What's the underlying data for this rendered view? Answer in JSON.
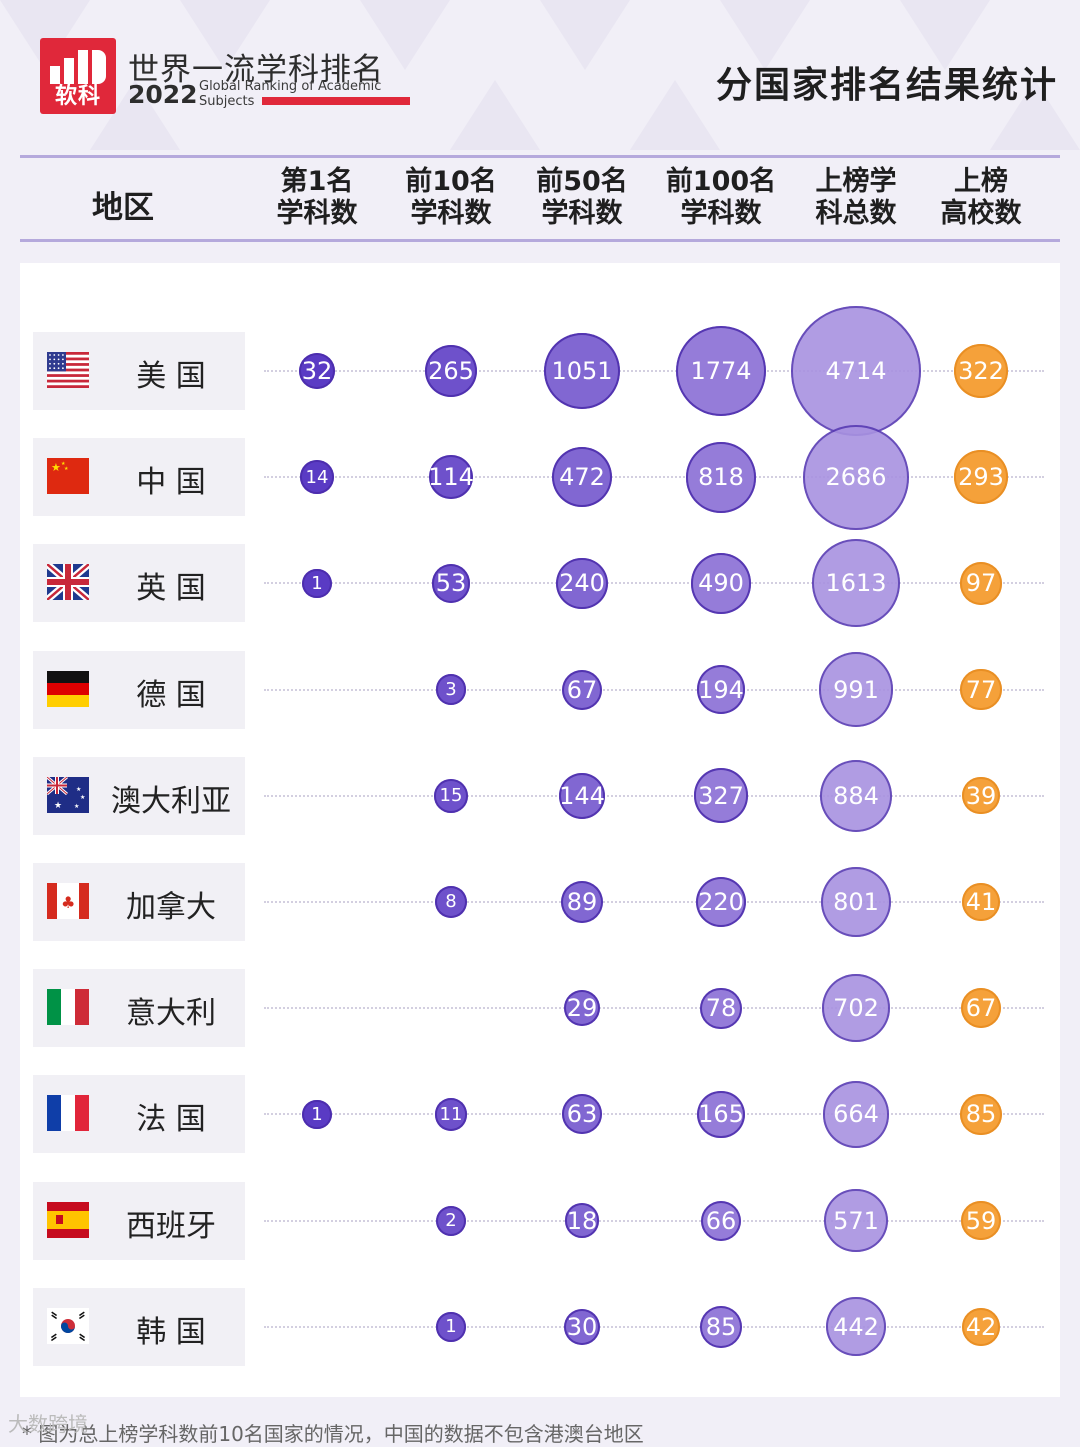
{
  "header": {
    "brand_logo_text": "软科",
    "brand_cn": "世界一流学科排名",
    "brand_year": "2022",
    "brand_en_line1": "Global Ranking of Academic",
    "brand_en_line2": "Subjects",
    "title": "分国家排名结果统计"
  },
  "colors": {
    "purple_dark": "#5a3bc4",
    "purple_light": "#a892e0",
    "orange": "#f5a13a",
    "logo_red": "#e0283a"
  },
  "chart_data": {
    "type": "table",
    "row_header": "地区",
    "columns": [
      {
        "key": "first",
        "line1": "第1名",
        "line2": "学科数"
      },
      {
        "key": "top10",
        "line1": "前10名",
        "line2": "学科数"
      },
      {
        "key": "top50",
        "line1": "前50名",
        "line2": "学科数"
      },
      {
        "key": "top100",
        "line1": "前100名",
        "line2": "学科数"
      },
      {
        "key": "total",
        "line1": "上榜学",
        "line2": "科总数"
      },
      {
        "key": "schools",
        "line1": "上榜",
        "line2": "高校数"
      }
    ],
    "rows": [
      {
        "name": "美 国",
        "flag": "usa-flag",
        "values": [
          32,
          265,
          1051,
          1774,
          4714,
          322
        ]
      },
      {
        "name": "中 国",
        "flag": "china-flag",
        "values": [
          14,
          114,
          472,
          818,
          2686,
          293
        ]
      },
      {
        "name": "英 国",
        "flag": "uk-flag",
        "values": [
          1,
          53,
          240,
          490,
          1613,
          97
        ]
      },
      {
        "name": "德 国",
        "flag": "germany-flag",
        "values": [
          null,
          3,
          67,
          194,
          991,
          77
        ]
      },
      {
        "name": "澳大利亚",
        "flag": "australia-flag",
        "values": [
          null,
          15,
          144,
          327,
          884,
          39
        ]
      },
      {
        "name": "加拿大",
        "flag": "canada-flag",
        "values": [
          null,
          8,
          89,
          220,
          801,
          41
        ]
      },
      {
        "name": "意大利",
        "flag": "italy-flag",
        "values": [
          null,
          null,
          29,
          78,
          702,
          67
        ]
      },
      {
        "name": "法 国",
        "flag": "france-flag",
        "values": [
          1,
          11,
          63,
          165,
          664,
          85
        ]
      },
      {
        "name": "西班牙",
        "flag": "spain-flag",
        "values": [
          null,
          2,
          18,
          66,
          571,
          59
        ]
      },
      {
        "name": "韩 国",
        "flag": "korea-flag",
        "values": [
          null,
          1,
          30,
          85,
          442,
          42
        ]
      }
    ]
  },
  "footnote": "* 图为总上榜学科数前10名国家的情况，中国的数据不包含港澳台地区",
  "watermark": "大数跨境"
}
